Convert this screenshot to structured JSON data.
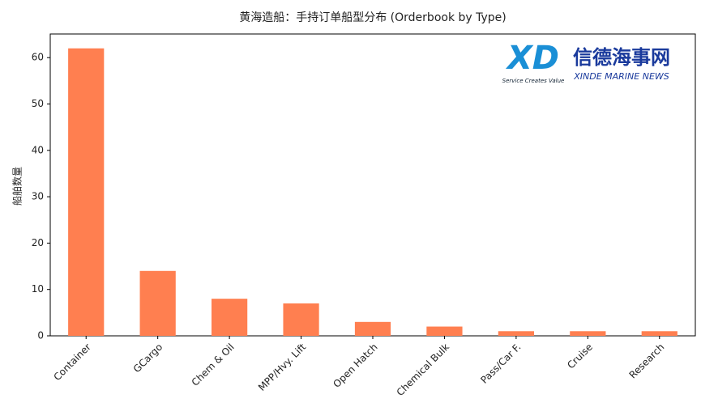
{
  "chart_data": {
    "type": "bar",
    "title": "黄海造船：手持订单船型分布 (Orderbook by Type)",
    "ylabel": "船舶数量",
    "categories": [
      "Container",
      "GCargo",
      "Chem & Oil",
      "MPP/Hvy. Lift",
      "Open Hatch",
      "Chemical Bulk",
      "Pass/Car F.",
      "Cruise",
      "Research"
    ],
    "values": [
      62,
      14,
      8,
      7,
      3,
      2,
      1,
      1,
      1
    ],
    "color": "#ff7f50",
    "ylim": [
      0,
      65.1
    ],
    "yticks": [
      0,
      10,
      20,
      30,
      40,
      50,
      60
    ],
    "grid": false
  },
  "logo": {
    "mark": "XD",
    "name": "信德海事网",
    "slogan": "Service Creates Value",
    "english": "XINDE MARINE NEWS"
  }
}
